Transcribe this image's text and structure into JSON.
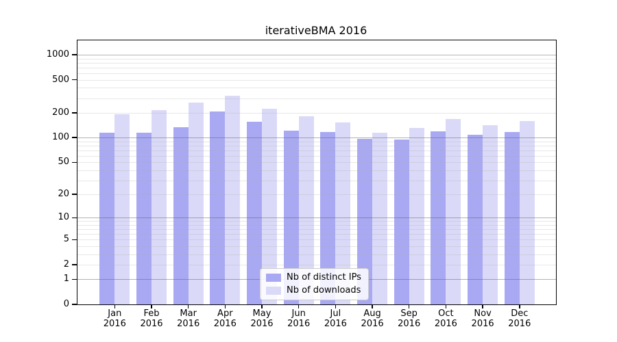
{
  "chart_data": {
    "type": "bar",
    "title": "iterativeBMA 2016",
    "categories": [
      "Jan",
      "Feb",
      "Mar",
      "Apr",
      "May",
      "Jun",
      "Jul",
      "Aug",
      "Sep",
      "Oct",
      "Nov",
      "Dec"
    ],
    "year_label": "2016",
    "series": [
      {
        "name": "Nb of distinct IPs",
        "color": "#a9a9f3",
        "values": [
          115,
          115,
          135,
          207,
          157,
          122,
          118,
          97,
          95,
          120,
          108,
          117
        ]
      },
      {
        "name": "Nb of downloads",
        "color": "#dadaf8",
        "values": [
          192,
          215,
          263,
          320,
          225,
          181,
          152,
          115,
          131,
          169,
          142,
          159
        ]
      }
    ],
    "xlabel": "",
    "ylabel": "",
    "y_axis": {
      "scale": "log10(value+1)",
      "ticks": [
        0,
        1,
        2,
        5,
        10,
        20,
        50,
        100,
        200,
        500,
        1000
      ],
      "ylim": [
        0,
        1490
      ],
      "grid": "horizontal minor and major log gridlines"
    },
    "legend_position": "inside bottom-center"
  }
}
